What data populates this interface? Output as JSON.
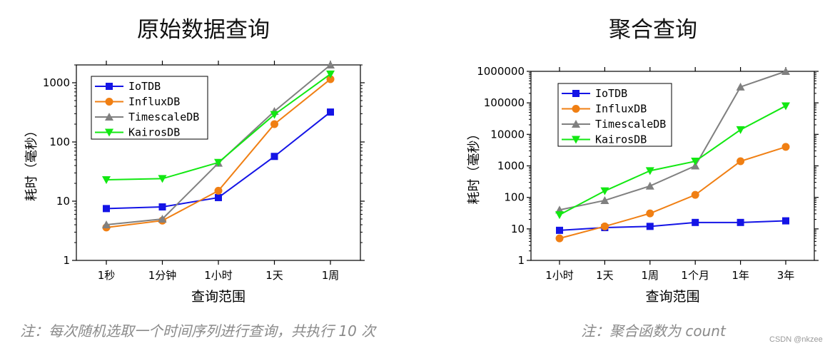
{
  "colors": {
    "IoTDB": "#1414e6",
    "InfluxDB": "#f07f13",
    "TimescaleDB": "#808080",
    "KairosDB": "#12e812"
  },
  "chart_data": [
    {
      "type": "line",
      "title": "原始数据查询",
      "xlabel": "查询范围",
      "ylabel": "耗时（毫秒）",
      "yscale": "log",
      "ylim": [
        1,
        2000
      ],
      "yticks": [
        {
          "v": 1,
          "label": "1"
        },
        {
          "v": 10,
          "label": "10"
        },
        {
          "v": 100,
          "label": "100"
        },
        {
          "v": 1000,
          "label": "1000"
        }
      ],
      "categories": [
        "1秒",
        "1分钟",
        "1小时",
        "1天",
        "1周"
      ],
      "series": [
        {
          "name": "IoTDB",
          "marker": "square",
          "values": [
            7.5,
            8,
            11.5,
            57,
            320
          ]
        },
        {
          "name": "InfluxDB",
          "marker": "circle",
          "values": [
            3.6,
            4.7,
            15,
            200,
            1150
          ]
        },
        {
          "name": "TimescaleDB",
          "marker": "triangle-up",
          "values": [
            4,
            5,
            44,
            330,
            2000
          ]
        },
        {
          "name": "KairosDB",
          "marker": "triangle-down",
          "values": [
            23,
            24,
            45,
            290,
            1400
          ]
        }
      ],
      "legend": "top-left"
    },
    {
      "type": "line",
      "title": "聚合查询",
      "xlabel": "查询范围",
      "ylabel": "耗时（毫秒）",
      "yscale": "log",
      "ylim": [
        1,
        1000000
      ],
      "yticks": [
        {
          "v": 1,
          "label": "1"
        },
        {
          "v": 10,
          "label": "10"
        },
        {
          "v": 100,
          "label": "100"
        },
        {
          "v": 1000,
          "label": "1000"
        },
        {
          "v": 10000,
          "label": "10000"
        },
        {
          "v": 100000,
          "label": "100000"
        },
        {
          "v": 1000000,
          "label": "1000000"
        }
      ],
      "categories": [
        "1小时",
        "1天",
        "1周",
        "1个月",
        "1年",
        "3年"
      ],
      "series": [
        {
          "name": "IoTDB",
          "marker": "square",
          "values": [
            9,
            11,
            12,
            16,
            16,
            18
          ]
        },
        {
          "name": "InfluxDB",
          "marker": "circle",
          "values": [
            5,
            12,
            31,
            120,
            1400,
            4000
          ]
        },
        {
          "name": "TimescaleDB",
          "marker": "triangle-up",
          "values": [
            40,
            80,
            230,
            1000,
            320000,
            1000000
          ]
        },
        {
          "name": "KairosDB",
          "marker": "triangle-down",
          "values": [
            28,
            160,
            700,
            1400,
            14000,
            80000
          ]
        }
      ],
      "legend": "top-left"
    }
  ],
  "notes": {
    "left": "注：每次随机选取一个时间序列进行查询，共执行 10 次",
    "right": "注：聚合函数为 count"
  },
  "watermark": "CSDN @nkzee"
}
